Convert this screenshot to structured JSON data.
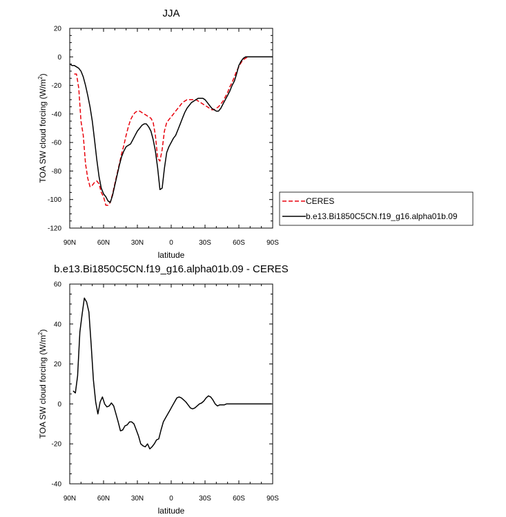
{
  "colors": {
    "ceres": "#e8000b",
    "model": "#000000"
  },
  "chart_data": [
    {
      "type": "line",
      "title": "JJA",
      "xlabel": "latitude",
      "ylabel": "TOA SW cloud forcing (W/m",
      "ylabel_sup": "2",
      "ylabel_close": ")",
      "xlim": [
        -90,
        90
      ],
      "ylim": [
        -120,
        20
      ],
      "x_ticks": [
        -90,
        -60,
        -30,
        0,
        30,
        60,
        90
      ],
      "x_tick_labels": [
        "90N",
        "60N",
        "30N",
        "0",
        "30S",
        "60S",
        "90S"
      ],
      "y_ticks": [
        -120,
        -100,
        -80,
        -60,
        -40,
        -20,
        0,
        20
      ],
      "y_tick_labels": [
        "-120",
        "-100",
        "-80",
        "-60",
        "-40",
        "-20",
        "0",
        "20"
      ],
      "grid": false,
      "legend_position": "right",
      "series": [
        {
          "name": "CERES",
          "style": "dashed",
          "x": [
            -86,
            -84,
            -82,
            -80,
            -78,
            -76,
            -74,
            -72,
            -70,
            -68,
            -66,
            -64,
            -62,
            -60,
            -58,
            -56,
            -54,
            -52,
            -50,
            -48,
            -46,
            -44,
            -42,
            -40,
            -38,
            -36,
            -34,
            -32,
            -30,
            -28,
            -26,
            -24,
            -22,
            -20,
            -18,
            -16,
            -14,
            -12,
            -10,
            -8,
            -6,
            -4,
            -2,
            0,
            2,
            4,
            6,
            8,
            10,
            12,
            14,
            16,
            18,
            20,
            22,
            24,
            26,
            28,
            30,
            32,
            34,
            36,
            38,
            40,
            42,
            44,
            46,
            48,
            50,
            52,
            54,
            56,
            58,
            60,
            62,
            64,
            66,
            68,
            70,
            72,
            74,
            76,
            78,
            80,
            82,
            84,
            86,
            88
          ],
          "y": [
            -12,
            -12,
            -22,
            -45,
            -55,
            -75,
            -85,
            -91,
            -90,
            -88,
            -87,
            -89,
            -95,
            -98,
            -104,
            -104,
            -102,
            -96,
            -89,
            -82,
            -75,
            -68,
            -62,
            -55,
            -49,
            -44,
            -41,
            -39,
            -38,
            -38,
            -39,
            -40,
            -41,
            -42,
            -43,
            -46,
            -55,
            -71,
            -73,
            -65,
            -52,
            -46,
            -44,
            -42,
            -40,
            -38,
            -36,
            -34,
            -32,
            -31,
            -30,
            -30,
            -30,
            -30,
            -30,
            -31,
            -32,
            -33,
            -34,
            -35,
            -36,
            -37,
            -37,
            -36,
            -35,
            -33,
            -31,
            -28,
            -25,
            -21,
            -18,
            -14,
            -10,
            -7,
            -4,
            -2,
            -1,
            0,
            0,
            0,
            0,
            0,
            0,
            0,
            0,
            0,
            0,
            0
          ]
        },
        {
          "name": "b.e13.Bi1850C5CN.f19_g16.alpha01b.09",
          "style": "solid",
          "x": [
            -90,
            -88,
            -86,
            -84,
            -82,
            -80,
            -78,
            -76,
            -74,
            -72,
            -70,
            -68,
            -66,
            -64,
            -62,
            -60,
            -58,
            -56,
            -54,
            -52,
            -50,
            -48,
            -46,
            -44,
            -42,
            -40,
            -38,
            -36,
            -34,
            -32,
            -30,
            -28,
            -26,
            -24,
            -22,
            -20,
            -18,
            -16,
            -14,
            -12,
            -10,
            -8,
            -6,
            -4,
            -2,
            0,
            2,
            4,
            6,
            8,
            10,
            12,
            14,
            16,
            18,
            20,
            22,
            24,
            26,
            28,
            30,
            32,
            34,
            36,
            38,
            40,
            42,
            44,
            46,
            48,
            50,
            52,
            54,
            56,
            58,
            60,
            62,
            64,
            66,
            68,
            70,
            72,
            74,
            76,
            78,
            80,
            82,
            84,
            86,
            88,
            90
          ],
          "y": [
            -5,
            -6,
            -6,
            -7,
            -8,
            -10,
            -14,
            -20,
            -27,
            -35,
            -45,
            -58,
            -72,
            -84,
            -92,
            -96,
            -98,
            -101,
            -102,
            -97,
            -90,
            -83,
            -76,
            -70,
            -66,
            -63,
            -62,
            -61,
            -58,
            -55,
            -52,
            -50,
            -48,
            -47,
            -47,
            -49,
            -52,
            -58,
            -66,
            -78,
            -93,
            -92,
            -78,
            -67,
            -63,
            -60,
            -57,
            -55,
            -51,
            -47,
            -43,
            -39,
            -36,
            -34,
            -32,
            -31,
            -30,
            -29,
            -29,
            -29,
            -30,
            -32,
            -34,
            -36,
            -37,
            -38,
            -38,
            -36,
            -33,
            -30,
            -27,
            -24,
            -20,
            -17,
            -12,
            -6,
            -3,
            -1,
            0,
            0,
            0,
            0,
            0,
            0,
            0,
            0,
            0,
            0,
            0,
            0,
            0
          ]
        }
      ]
    },
    {
      "type": "line",
      "title": "b.e13.Bi1850C5CN.f19_g16.alpha01b.09 - CERES",
      "xlabel": "latitude",
      "ylabel": "TOA SW cloud forcing (W/m",
      "ylabel_sup": "2",
      "ylabel_close": ")",
      "xlim": [
        -90,
        90
      ],
      "ylim": [
        -40,
        60
      ],
      "x_ticks": [
        -90,
        -60,
        -30,
        0,
        30,
        60,
        90
      ],
      "x_tick_labels": [
        "90N",
        "60N",
        "30N",
        "0",
        "30S",
        "60S",
        "90S"
      ],
      "y_ticks": [
        -40,
        -20,
        0,
        20,
        40,
        60
      ],
      "y_tick_labels": [
        "-40",
        "-20",
        "0",
        "20",
        "40",
        "60"
      ],
      "grid": false,
      "series": [
        {
          "style": "solid",
          "x": [
            -87,
            -85,
            -83,
            -81,
            -79,
            -77,
            -75,
            -73,
            -71,
            -69,
            -67,
            -65,
            -63,
            -61,
            -59,
            -57,
            -55,
            -53,
            -51,
            -49,
            -47,
            -45,
            -43,
            -41,
            -39,
            -37,
            -35,
            -33,
            -31,
            -29,
            -27,
            -25,
            -23,
            -21,
            -19,
            -17,
            -15,
            -13,
            -11,
            -9,
            -7,
            -5,
            -3,
            -1,
            1,
            3,
            5,
            7,
            9,
            11,
            13,
            15,
            17,
            19,
            21,
            23,
            25,
            27,
            29,
            31,
            33,
            35,
            37,
            39,
            41,
            43,
            45,
            47,
            49,
            51,
            53,
            55,
            57,
            59,
            61,
            63,
            65,
            67,
            69,
            71,
            73,
            75,
            77,
            79,
            81,
            83,
            85,
            87,
            89
          ],
          "y": [
            6.5,
            5.5,
            14,
            36,
            45,
            53,
            51,
            46,
            30,
            12,
            1,
            -5,
            1,
            3.5,
            0,
            -1.5,
            -1,
            0.5,
            -1,
            -5,
            -9,
            -13.5,
            -13,
            -11,
            -10.5,
            -9,
            -9,
            -10,
            -13,
            -16,
            -20,
            -21,
            -21.5,
            -20,
            -22.5,
            -21.5,
            -20,
            -18,
            -17.5,
            -13,
            -9,
            -7,
            -5,
            -3,
            -1,
            1,
            3,
            3.5,
            3,
            2,
            1,
            -0.5,
            -2,
            -2.5,
            -2,
            -1,
            0,
            0.5,
            1.5,
            3,
            4,
            3.5,
            2,
            0,
            -1,
            -0.5,
            -0.5,
            -0.5,
            0,
            0,
            0,
            0,
            0,
            0,
            0,
            0,
            0,
            0,
            0,
            0,
            0,
            0,
            0,
            0,
            0,
            0,
            0,
            0,
            0
          ]
        }
      ]
    }
  ]
}
